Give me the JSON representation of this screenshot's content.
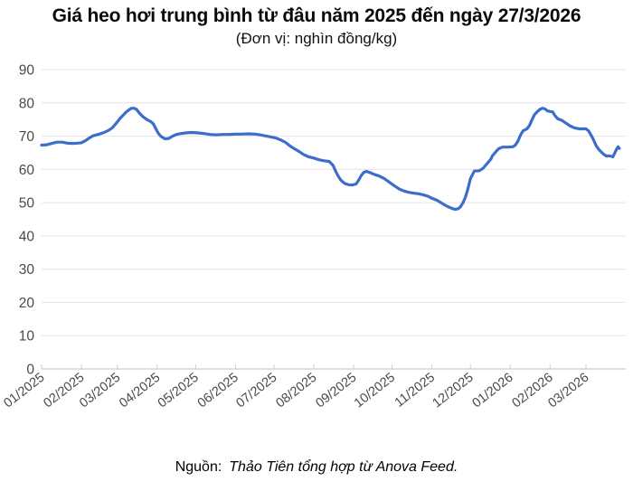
{
  "title": "Giá heo hơi trung bình từ đâu năm 2025 đến ngày 27/3/2026",
  "subtitle": "(Đơn vị: nghìn đồng/kg)",
  "source": {
    "label": "Nguồn:",
    "text": "Thảo Tiên tổng hợp từ Anova Feed."
  },
  "colors": {
    "line": "#3d6dcb",
    "grid": "#e4e4e4",
    "axis": "#cccccc",
    "tick_label": "#4a4a4a",
    "background": "#ffffff"
  },
  "chart_data": {
    "type": "line",
    "title": "Giá heo hơi trung bình từ đâu năm 2025 đến ngày 27/3/2026",
    "unit": "nghìn đồng/kg",
    "xlabel": "",
    "ylabel": "",
    "ylim": [
      0,
      90
    ],
    "y_ticks": [
      0,
      10,
      20,
      30,
      40,
      50,
      60,
      70,
      80,
      90
    ],
    "x_domain": [
      0,
      455
    ],
    "x_tick_labels": [
      "01/2025",
      "02/2025",
      "03/2025",
      "04/2025",
      "05/2025",
      "06/2025",
      "07/2025",
      "08/2025",
      "09/2025",
      "10/2025",
      "11/2025",
      "12/2025",
      "01/2026",
      "02/2026",
      "03/2026"
    ],
    "x_tick_days": [
      0,
      31,
      59,
      90,
      120,
      151,
      181,
      212,
      243,
      273,
      304,
      334,
      365,
      396,
      424
    ],
    "grid": "horizontal",
    "legend": "none",
    "series": [
      {
        "points": [
          [
            0,
            67.3
          ],
          [
            4,
            67.4
          ],
          [
            8,
            67.8
          ],
          [
            12,
            68.2
          ],
          [
            16,
            68.2
          ],
          [
            20,
            67.9
          ],
          [
            24,
            67.8
          ],
          [
            28,
            67.9
          ],
          [
            31,
            68.0
          ],
          [
            34,
            68.6
          ],
          [
            37,
            69.4
          ],
          [
            40,
            70.1
          ],
          [
            44,
            70.5
          ],
          [
            48,
            71.0
          ],
          [
            52,
            71.7
          ],
          [
            55,
            72.5
          ],
          [
            58,
            73.8
          ],
          [
            61,
            75.3
          ],
          [
            64,
            76.5
          ],
          [
            66,
            77.3
          ],
          [
            68,
            77.9
          ],
          [
            70,
            78.4
          ],
          [
            72,
            78.4
          ],
          [
            74,
            78.0
          ],
          [
            76,
            77.0
          ],
          [
            79,
            75.8
          ],
          [
            82,
            75.0
          ],
          [
            85,
            74.4
          ],
          [
            87,
            73.7
          ],
          [
            89,
            72.2
          ],
          [
            91,
            70.8
          ],
          [
            93,
            69.9
          ],
          [
            96,
            69.2
          ],
          [
            99,
            69.3
          ],
          [
            102,
            70.0
          ],
          [
            105,
            70.5
          ],
          [
            109,
            70.8
          ],
          [
            113,
            71.0
          ],
          [
            117,
            71.1
          ],
          [
            121,
            71.0
          ],
          [
            126,
            70.8
          ],
          [
            131,
            70.5
          ],
          [
            136,
            70.4
          ],
          [
            141,
            70.5
          ],
          [
            146,
            70.5
          ],
          [
            151,
            70.6
          ],
          [
            156,
            70.6
          ],
          [
            161,
            70.7
          ],
          [
            166,
            70.6
          ],
          [
            170,
            70.4
          ],
          [
            174,
            70.1
          ],
          [
            178,
            69.8
          ],
          [
            182,
            69.5
          ],
          [
            186,
            68.9
          ],
          [
            190,
            68.1
          ],
          [
            193,
            67.2
          ],
          [
            196,
            66.4
          ],
          [
            200,
            65.5
          ],
          [
            204,
            64.5
          ],
          [
            208,
            63.8
          ],
          [
            212,
            63.4
          ],
          [
            216,
            62.9
          ],
          [
            220,
            62.6
          ],
          [
            224,
            62.4
          ],
          [
            227,
            61.2
          ],
          [
            229,
            59.5
          ],
          [
            231,
            58.0
          ],
          [
            233,
            56.8
          ],
          [
            236,
            55.8
          ],
          [
            239,
            55.4
          ],
          [
            242,
            55.3
          ],
          [
            245,
            55.6
          ],
          [
            247,
            56.8
          ],
          [
            249,
            58.2
          ],
          [
            251,
            59.1
          ],
          [
            253,
            59.4
          ],
          [
            256,
            59.0
          ],
          [
            259,
            58.5
          ],
          [
            263,
            58.0
          ],
          [
            267,
            57.2
          ],
          [
            271,
            56.1
          ],
          [
            275,
            55.0
          ],
          [
            279,
            54.0
          ],
          [
            283,
            53.4
          ],
          [
            286,
            53.1
          ],
          [
            289,
            52.9
          ],
          [
            293,
            52.7
          ],
          [
            297,
            52.4
          ],
          [
            301,
            51.9
          ],
          [
            304,
            51.3
          ],
          [
            308,
            50.7
          ],
          [
            311,
            50.0
          ],
          [
            314,
            49.3
          ],
          [
            317,
            48.7
          ],
          [
            320,
            48.2
          ],
          [
            322,
            48.0
          ],
          [
            324,
            48.1
          ],
          [
            326,
            48.6
          ],
          [
            328,
            49.8
          ],
          [
            330,
            51.5
          ],
          [
            332,
            54.1
          ],
          [
            334,
            57.2
          ],
          [
            337,
            59.5
          ],
          [
            341,
            59.6
          ],
          [
            344,
            60.4
          ],
          [
            348,
            62.2
          ],
          [
            350,
            63.1
          ],
          [
            351,
            64.0
          ],
          [
            354,
            65.4
          ],
          [
            356,
            66.2
          ],
          [
            359,
            66.7
          ],
          [
            363,
            66.7
          ],
          [
            367,
            66.8
          ],
          [
            369,
            67.3
          ],
          [
            371,
            68.5
          ],
          [
            373,
            70.3
          ],
          [
            375,
            71.6
          ],
          [
            378,
            72.2
          ],
          [
            380,
            73.2
          ],
          [
            382,
            75.0
          ],
          [
            384,
            76.5
          ],
          [
            386,
            77.3
          ],
          [
            388,
            78.0
          ],
          [
            390,
            78.4
          ],
          [
            392,
            78.2
          ],
          [
            394,
            77.6
          ],
          [
            396,
            77.4
          ],
          [
            398,
            77.3
          ],
          [
            400,
            76.1
          ],
          [
            402,
            75.2
          ],
          [
            405,
            74.8
          ],
          [
            408,
            74.0
          ],
          [
            412,
            73.0
          ],
          [
            415,
            72.5
          ],
          [
            419,
            72.2
          ],
          [
            424,
            72.2
          ],
          [
            426,
            71.6
          ],
          [
            428,
            70.3
          ],
          [
            430,
            68.8
          ],
          [
            432,
            67.1
          ],
          [
            434,
            66.0
          ],
          [
            436,
            65.2
          ],
          [
            438,
            64.5
          ],
          [
            440,
            64.0
          ],
          [
            442,
            64.1
          ],
          [
            444,
            63.9
          ],
          [
            445,
            63.8
          ],
          [
            446,
            64.6
          ],
          [
            448,
            66.2
          ],
          [
            449,
            66.8
          ],
          [
            450,
            66.3
          ]
        ]
      }
    ]
  }
}
